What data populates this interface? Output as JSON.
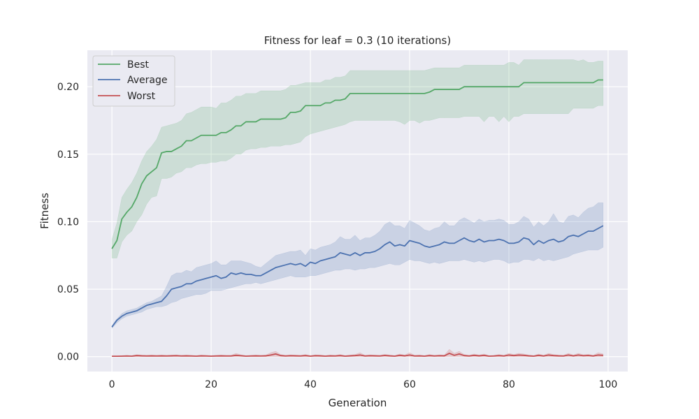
{
  "chart_data": {
    "type": "line",
    "title": "Fitness for leaf = 0.3 (10 iterations)",
    "xlabel": "Generation",
    "ylabel": "Fitness",
    "xlim": [
      -4.95,
      103.95
    ],
    "ylim": [
      -0.011,
      0.227
    ],
    "xticks": [
      0,
      20,
      40,
      60,
      80,
      100
    ],
    "yticks": [
      0.0,
      0.05,
      0.1,
      0.15,
      0.2
    ],
    "xtick_labels": [
      "0",
      "20",
      "40",
      "60",
      "80",
      "100"
    ],
    "ytick_labels": [
      "0.00",
      "0.05",
      "0.10",
      "0.15",
      "0.20"
    ],
    "grid": true,
    "legend_position": "top-left",
    "background": "#eaeaf2",
    "series": [
      {
        "name": "Best",
        "color": "#55a868",
        "x_start": 0,
        "x_step": 1,
        "values": [
          0.08,
          0.086,
          0.102,
          0.107,
          0.111,
          0.118,
          0.128,
          0.134,
          0.137,
          0.14,
          0.151,
          0.152,
          0.152,
          0.154,
          0.156,
          0.16,
          0.16,
          0.162,
          0.164,
          0.164,
          0.164,
          0.164,
          0.166,
          0.166,
          0.168,
          0.171,
          0.171,
          0.174,
          0.174,
          0.174,
          0.176,
          0.176,
          0.176,
          0.176,
          0.176,
          0.177,
          0.181,
          0.181,
          0.182,
          0.186,
          0.186,
          0.186,
          0.186,
          0.188,
          0.188,
          0.19,
          0.19,
          0.191,
          0.195,
          0.195,
          0.195,
          0.195,
          0.195,
          0.195,
          0.195,
          0.195,
          0.195,
          0.195,
          0.195,
          0.195,
          0.195,
          0.195,
          0.195,
          0.195,
          0.196,
          0.198,
          0.198,
          0.198,
          0.198,
          0.198,
          0.198,
          0.2,
          0.2,
          0.2,
          0.2,
          0.2,
          0.2,
          0.2,
          0.2,
          0.2,
          0.2,
          0.2,
          0.2,
          0.203,
          0.203,
          0.203,
          0.203,
          0.203,
          0.203,
          0.203,
          0.203,
          0.203,
          0.203,
          0.203,
          0.203,
          0.203,
          0.203,
          0.203,
          0.205,
          0.205
        ],
        "lower": [
          0.073,
          0.073,
          0.085,
          0.09,
          0.093,
          0.1,
          0.105,
          0.113,
          0.118,
          0.119,
          0.132,
          0.132,
          0.133,
          0.136,
          0.137,
          0.14,
          0.14,
          0.142,
          0.143,
          0.143,
          0.144,
          0.144,
          0.145,
          0.145,
          0.147,
          0.15,
          0.15,
          0.153,
          0.154,
          0.154,
          0.155,
          0.155,
          0.156,
          0.156,
          0.156,
          0.157,
          0.157,
          0.158,
          0.159,
          0.163,
          0.165,
          0.166,
          0.167,
          0.168,
          0.169,
          0.17,
          0.171,
          0.172,
          0.174,
          0.175,
          0.175,
          0.175,
          0.175,
          0.175,
          0.175,
          0.175,
          0.175,
          0.175,
          0.174,
          0.172,
          0.175,
          0.175,
          0.173,
          0.175,
          0.175,
          0.176,
          0.177,
          0.177,
          0.177,
          0.177,
          0.177,
          0.178,
          0.178,
          0.178,
          0.178,
          0.174,
          0.178,
          0.178,
          0.174,
          0.178,
          0.174,
          0.178,
          0.178,
          0.18,
          0.18,
          0.18,
          0.18,
          0.18,
          0.18,
          0.18,
          0.18,
          0.18,
          0.18,
          0.184,
          0.184,
          0.184,
          0.184,
          0.184,
          0.186,
          0.186
        ],
        "upper": [
          0.087,
          0.099,
          0.118,
          0.124,
          0.129,
          0.136,
          0.145,
          0.152,
          0.156,
          0.161,
          0.17,
          0.171,
          0.172,
          0.173,
          0.175,
          0.18,
          0.181,
          0.183,
          0.185,
          0.185,
          0.185,
          0.184,
          0.188,
          0.188,
          0.19,
          0.193,
          0.193,
          0.195,
          0.195,
          0.195,
          0.197,
          0.197,
          0.197,
          0.197,
          0.197,
          0.198,
          0.201,
          0.201,
          0.202,
          0.203,
          0.203,
          0.203,
          0.203,
          0.205,
          0.205,
          0.207,
          0.207,
          0.208,
          0.212,
          0.212,
          0.212,
          0.212,
          0.212,
          0.212,
          0.212,
          0.212,
          0.212,
          0.212,
          0.212,
          0.212,
          0.212,
          0.212,
          0.212,
          0.212,
          0.213,
          0.214,
          0.214,
          0.214,
          0.214,
          0.214,
          0.214,
          0.216,
          0.216,
          0.216,
          0.216,
          0.216,
          0.216,
          0.216,
          0.216,
          0.216,
          0.218,
          0.218,
          0.216,
          0.22,
          0.22,
          0.22,
          0.22,
          0.22,
          0.22,
          0.22,
          0.22,
          0.22,
          0.22,
          0.22,
          0.219,
          0.22,
          0.218,
          0.218,
          0.219,
          0.219
        ]
      },
      {
        "name": "Average",
        "color": "#4c72b0",
        "x_start": 0,
        "x_step": 1,
        "values": [
          0.022,
          0.027,
          0.03,
          0.032,
          0.033,
          0.034,
          0.036,
          0.038,
          0.039,
          0.04,
          0.041,
          0.045,
          0.05,
          0.051,
          0.052,
          0.054,
          0.054,
          0.056,
          0.057,
          0.058,
          0.059,
          0.06,
          0.058,
          0.059,
          0.062,
          0.061,
          0.062,
          0.061,
          0.061,
          0.06,
          0.06,
          0.062,
          0.064,
          0.066,
          0.067,
          0.068,
          0.069,
          0.068,
          0.069,
          0.067,
          0.07,
          0.069,
          0.071,
          0.072,
          0.073,
          0.074,
          0.077,
          0.076,
          0.075,
          0.077,
          0.075,
          0.077,
          0.077,
          0.078,
          0.08,
          0.083,
          0.085,
          0.082,
          0.083,
          0.082,
          0.086,
          0.085,
          0.084,
          0.082,
          0.081,
          0.082,
          0.083,
          0.085,
          0.084,
          0.084,
          0.086,
          0.088,
          0.086,
          0.085,
          0.087,
          0.085,
          0.086,
          0.086,
          0.087,
          0.086,
          0.084,
          0.084,
          0.085,
          0.088,
          0.087,
          0.083,
          0.086,
          0.084,
          0.086,
          0.087,
          0.085,
          0.086,
          0.089,
          0.09,
          0.089,
          0.091,
          0.093,
          0.093,
          0.095,
          0.097
        ],
        "lower": [
          0.021,
          0.025,
          0.028,
          0.03,
          0.031,
          0.032,
          0.033,
          0.035,
          0.036,
          0.037,
          0.037,
          0.038,
          0.04,
          0.041,
          0.043,
          0.044,
          0.045,
          0.046,
          0.046,
          0.047,
          0.049,
          0.049,
          0.049,
          0.05,
          0.051,
          0.052,
          0.053,
          0.054,
          0.054,
          0.055,
          0.054,
          0.055,
          0.056,
          0.057,
          0.058,
          0.059,
          0.06,
          0.059,
          0.059,
          0.059,
          0.06,
          0.06,
          0.061,
          0.062,
          0.063,
          0.064,
          0.064,
          0.065,
          0.065,
          0.064,
          0.065,
          0.065,
          0.066,
          0.066,
          0.067,
          0.068,
          0.069,
          0.068,
          0.068,
          0.07,
          0.072,
          0.071,
          0.071,
          0.07,
          0.069,
          0.07,
          0.069,
          0.07,
          0.071,
          0.071,
          0.071,
          0.072,
          0.071,
          0.07,
          0.071,
          0.07,
          0.071,
          0.072,
          0.072,
          0.071,
          0.069,
          0.07,
          0.07,
          0.072,
          0.072,
          0.071,
          0.073,
          0.071,
          0.072,
          0.071,
          0.072,
          0.073,
          0.074,
          0.076,
          0.077,
          0.078,
          0.079,
          0.079,
          0.079,
          0.081
        ],
        "upper": [
          0.023,
          0.028,
          0.032,
          0.034,
          0.035,
          0.036,
          0.038,
          0.04,
          0.041,
          0.043,
          0.045,
          0.052,
          0.06,
          0.062,
          0.062,
          0.064,
          0.063,
          0.066,
          0.067,
          0.068,
          0.069,
          0.071,
          0.068,
          0.068,
          0.071,
          0.071,
          0.071,
          0.07,
          0.069,
          0.067,
          0.066,
          0.069,
          0.072,
          0.075,
          0.076,
          0.077,
          0.078,
          0.078,
          0.079,
          0.075,
          0.08,
          0.079,
          0.081,
          0.082,
          0.083,
          0.085,
          0.089,
          0.087,
          0.087,
          0.09,
          0.086,
          0.088,
          0.088,
          0.09,
          0.093,
          0.098,
          0.1,
          0.097,
          0.097,
          0.095,
          0.101,
          0.099,
          0.097,
          0.094,
          0.093,
          0.095,
          0.096,
          0.1,
          0.097,
          0.097,
          0.101,
          0.103,
          0.101,
          0.099,
          0.102,
          0.1,
          0.101,
          0.101,
          0.102,
          0.101,
          0.098,
          0.098,
          0.1,
          0.104,
          0.102,
          0.096,
          0.1,
          0.097,
          0.1,
          0.106,
          0.1,
          0.099,
          0.104,
          0.105,
          0.103,
          0.107,
          0.11,
          0.111,
          0.114,
          0.114
        ]
      },
      {
        "name": "Worst",
        "color": "#c44e52",
        "x_start": 0,
        "x_step": 1,
        "values": [
          0.0003,
          0.0003,
          0.0004,
          0.0005,
          0.0004,
          0.0008,
          0.0006,
          0.0005,
          0.0006,
          0.0005,
          0.0006,
          0.0005,
          0.0006,
          0.0007,
          0.0005,
          0.0006,
          0.0005,
          0.0004,
          0.0006,
          0.0005,
          0.0004,
          0.0005,
          0.0006,
          0.0005,
          0.0005,
          0.001,
          0.0007,
          0.0004,
          0.0005,
          0.0006,
          0.0005,
          0.0006,
          0.0012,
          0.002,
          0.0008,
          0.0005,
          0.0007,
          0.0006,
          0.0005,
          0.0008,
          0.0004,
          0.0007,
          0.0006,
          0.0004,
          0.0006,
          0.0005,
          0.0008,
          0.0004,
          0.0006,
          0.0008,
          0.0012,
          0.0005,
          0.0007,
          0.0006,
          0.0005,
          0.0009,
          0.0006,
          0.0004,
          0.001,
          0.0006,
          0.0012,
          0.0005,
          0.0006,
          0.0004,
          0.0008,
          0.0005,
          0.0007,
          0.0006,
          0.0025,
          0.001,
          0.002,
          0.0008,
          0.0005,
          0.001,
          0.0006,
          0.001,
          0.0004,
          0.0005,
          0.0008,
          0.0005,
          0.0012,
          0.0008,
          0.0012,
          0.001,
          0.0006,
          0.0004,
          0.001,
          0.0005,
          0.0012,
          0.0008,
          0.0006,
          0.0005,
          0.0012,
          0.0006,
          0.0012,
          0.0007,
          0.0009,
          0.0005,
          0.0012,
          0.001
        ],
        "lower": [
          0.0,
          0.0,
          0.0,
          0.0,
          0.0,
          0.0,
          0.0,
          0.0,
          0.0,
          0.0,
          0.0,
          0.0,
          0.0,
          0.0,
          0.0,
          0.0,
          0.0,
          0.0,
          0.0,
          0.0,
          0.0,
          0.0,
          0.0,
          0.0,
          0.0,
          0.0,
          0.0,
          0.0,
          0.0,
          0.0,
          0.0,
          0.0,
          0.0,
          0.0,
          0.0,
          0.0,
          0.0,
          0.0,
          0.0,
          0.0,
          0.0,
          0.0,
          0.0,
          0.0,
          0.0,
          0.0,
          0.0,
          0.0,
          0.0,
          0.0,
          0.0,
          0.0,
          0.0,
          0.0,
          0.0,
          0.0,
          0.0,
          0.0,
          0.0,
          0.0,
          0.0,
          0.0,
          0.0,
          0.0,
          0.0,
          0.0,
          0.0,
          0.0,
          0.0,
          0.0,
          0.0,
          0.0,
          0.0,
          0.0,
          0.0,
          0.0,
          0.0,
          0.0,
          0.0,
          0.0,
          0.0,
          0.0,
          0.0,
          0.0,
          0.0,
          0.0,
          0.0,
          0.0,
          0.0,
          0.0,
          0.0,
          0.0,
          0.0,
          0.0,
          0.0,
          0.0,
          0.0,
          0.0,
          0.0,
          0.0
        ],
        "upper": [
          0.0006,
          0.0006,
          0.0008,
          0.001,
          0.0008,
          0.0015,
          0.0012,
          0.001,
          0.0012,
          0.001,
          0.0012,
          0.001,
          0.0012,
          0.0014,
          0.001,
          0.0012,
          0.001,
          0.0008,
          0.0012,
          0.001,
          0.0008,
          0.001,
          0.0012,
          0.001,
          0.001,
          0.0025,
          0.0014,
          0.0008,
          0.001,
          0.0012,
          0.001,
          0.0012,
          0.003,
          0.004,
          0.0016,
          0.001,
          0.0014,
          0.0012,
          0.001,
          0.0016,
          0.0008,
          0.0014,
          0.0012,
          0.0008,
          0.0012,
          0.001,
          0.0016,
          0.0008,
          0.0012,
          0.0016,
          0.003,
          0.001,
          0.0014,
          0.0012,
          0.001,
          0.0018,
          0.0012,
          0.0008,
          0.002,
          0.0012,
          0.003,
          0.001,
          0.0012,
          0.0008,
          0.0016,
          0.001,
          0.0014,
          0.0012,
          0.0055,
          0.0025,
          0.004,
          0.0016,
          0.001,
          0.002,
          0.0012,
          0.002,
          0.0008,
          0.001,
          0.0016,
          0.001,
          0.0025,
          0.0016,
          0.0025,
          0.002,
          0.0012,
          0.0008,
          0.002,
          0.001,
          0.0025,
          0.0016,
          0.0012,
          0.001,
          0.0025,
          0.0012,
          0.0025,
          0.0014,
          0.0018,
          0.001,
          0.003,
          0.002
        ]
      }
    ]
  }
}
